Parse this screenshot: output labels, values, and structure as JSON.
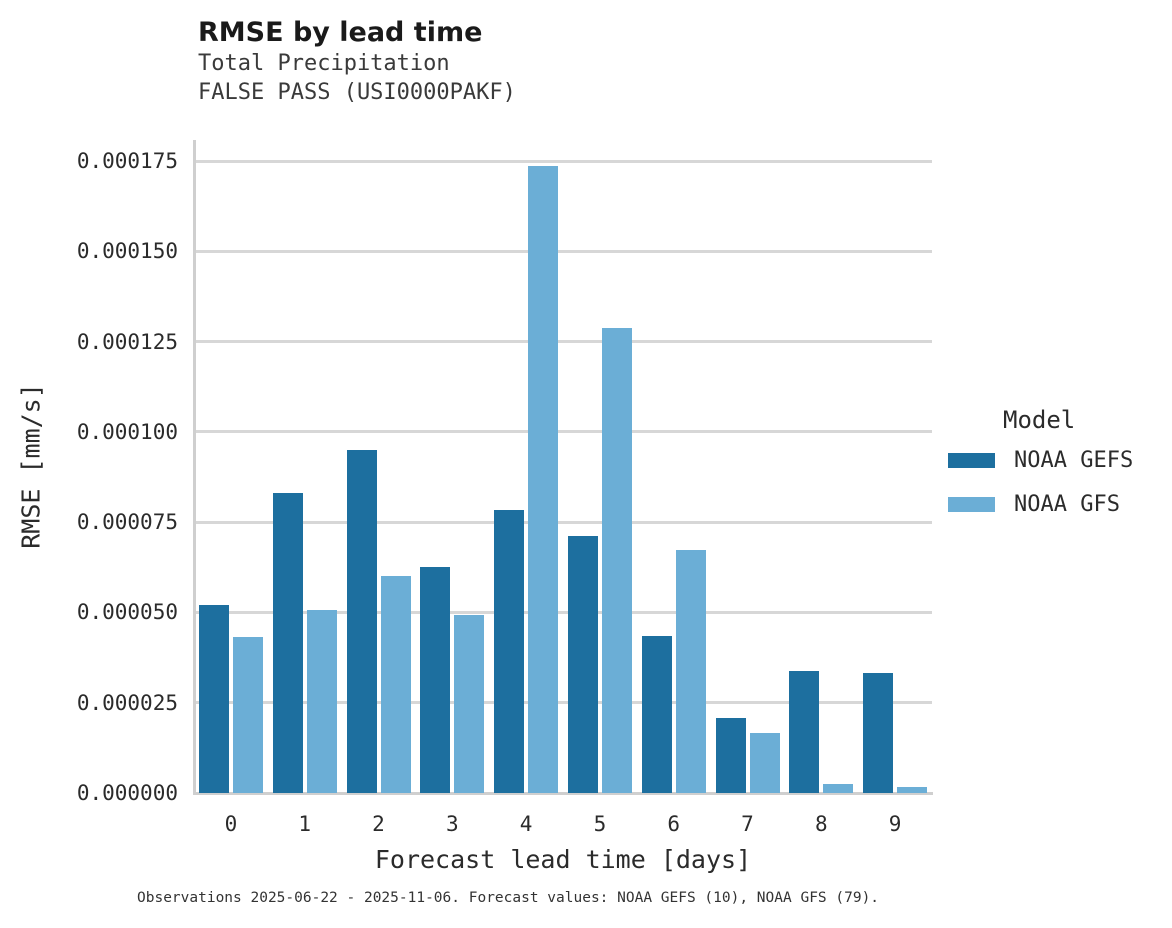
{
  "header": {
    "title": "RMSE by lead time",
    "subtitle1": "Total Precipitation",
    "subtitle2": "FALSE PASS (USI0000PAKF)"
  },
  "legend": {
    "title": "Model",
    "entries": [
      {
        "label": "NOAA GEFS",
        "color": "#1D6F9F"
      },
      {
        "label": "NOAA GFS",
        "color": "#6BAED6"
      }
    ]
  },
  "footer": {
    "caption": "Observations 2025-06-22 - 2025-11-06. Forecast values: NOAA GEFS (10), NOAA GFS (79)."
  },
  "chart_data": {
    "type": "bar",
    "title": "RMSE by lead time",
    "subtitle": [
      "Total Precipitation",
      "FALSE PASS (USI0000PAKF)"
    ],
    "categories": [
      "0",
      "1",
      "2",
      "3",
      "4",
      "5",
      "6",
      "7",
      "8",
      "9"
    ],
    "series": [
      {
        "name": "NOAA GEFS",
        "color": "#1D6F9F",
        "values": [
          5.2e-05,
          8.3e-05,
          9.5e-05,
          6.25e-05,
          7.85e-05,
          7.12e-05,
          4.35e-05,
          2.07e-05,
          3.38e-05,
          3.33e-05
        ]
      },
      {
        "name": "NOAA GFS",
        "color": "#6BAED6",
        "values": [
          4.32e-05,
          5.07e-05,
          6.01e-05,
          4.92e-05,
          0.0001737,
          0.0001288,
          6.73e-05,
          1.67e-05,
          2.4e-06,
          1.6e-06
        ]
      }
    ],
    "xlabel": "Forecast lead time [days]",
    "ylabel": "RMSE [mm/s]",
    "ylim": [
      0,
      0.00018
    ],
    "ytick_step": 2.5e-05,
    "ytick_max": 0.000175,
    "ytick_decimals": 6,
    "grid": true,
    "legend_title": "Model",
    "legend_position": "right"
  },
  "colors": {
    "grid": "#d7d7d7",
    "spine": "#cfcfcf",
    "text": "#2b2b2b",
    "background": "#ffffff"
  }
}
